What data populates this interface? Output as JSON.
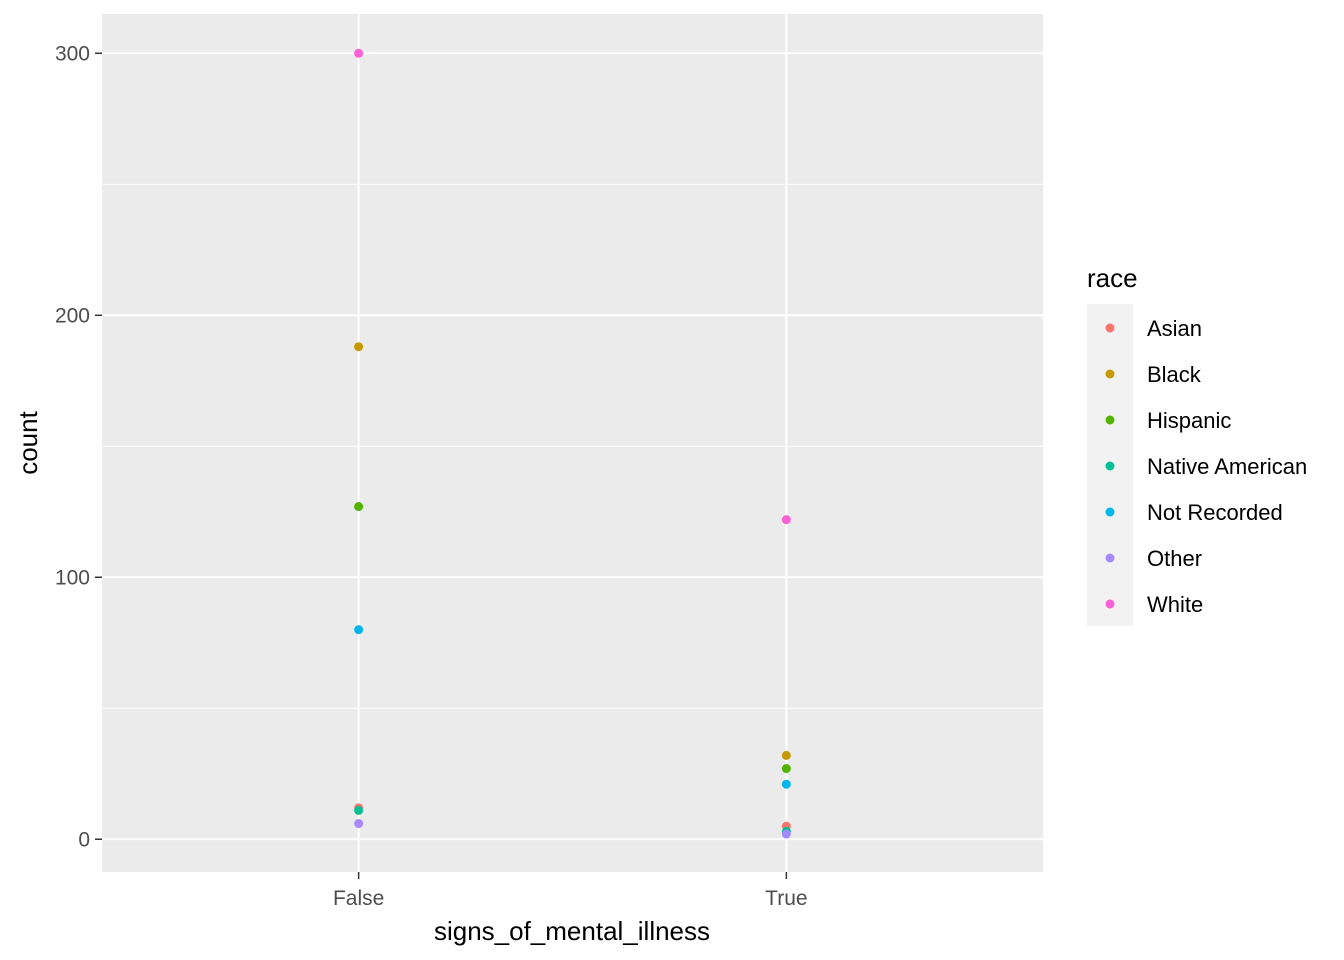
{
  "chart_data": {
    "type": "scatter",
    "title": "",
    "xlabel": "signs_of_mental_illness",
    "ylabel": "count",
    "categories": [
      "False",
      "True"
    ],
    "ylim": [
      -12.5,
      315
    ],
    "yticks": [
      0,
      100,
      200,
      300
    ],
    "grid": true,
    "legend": {
      "title": "race",
      "placement": "right"
    },
    "series": [
      {
        "name": "Asian",
        "color": "#F8766D",
        "values": [
          12,
          5
        ]
      },
      {
        "name": "Black",
        "color": "#C49A00",
        "values": [
          188,
          32
        ]
      },
      {
        "name": "Hispanic",
        "color": "#53B400",
        "values": [
          127,
          27
        ]
      },
      {
        "name": "Native American",
        "color": "#00C094",
        "values": [
          11,
          3
        ]
      },
      {
        "name": "Not Recorded",
        "color": "#00B6EB",
        "values": [
          80,
          21
        ]
      },
      {
        "name": "Other",
        "color": "#A58AFF",
        "values": [
          6,
          2
        ]
      },
      {
        "name": "White",
        "color": "#FB61D7",
        "values": [
          300,
          122
        ]
      }
    ]
  }
}
